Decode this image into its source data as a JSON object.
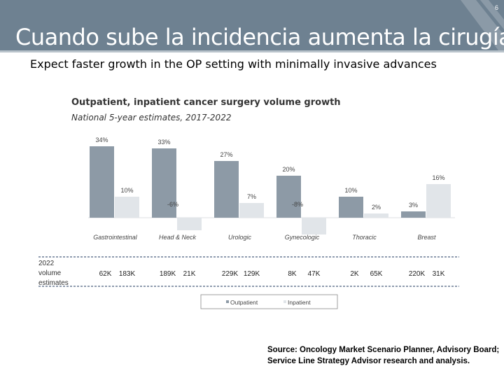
{
  "slide_number": "6",
  "title": "Cuando sube la incidencia aumenta la cirugía",
  "subtitle": "Expect faster growth in the OP setting with minimally invasive advances",
  "chart_title": "Outpatient, inpatient cancer surgery volume growth",
  "chart_subtitle": "National 5-year estimates, 2017-2022",
  "estimates_label": [
    "2022",
    "volume",
    "estimates"
  ],
  "source": "Source: Oncology Market Scenario Planner, Advisory Board; Service Line Strategy Advisor research and analysis.",
  "colors": {
    "outpatient": "#8d9aa6",
    "inpatient": "#e1e5e9",
    "header": "#6e8191",
    "dash": "#1f3a5f"
  },
  "chart_data": {
    "type": "bar",
    "title": "Outpatient, inpatient cancer surgery volume growth",
    "subtitle": "National 5-year estimates, 2017-2022",
    "categories": [
      "Gastrointestinal",
      "Head & Neck",
      "Urologic",
      "Gynecologic",
      "Thoracic",
      "Breast"
    ],
    "series": [
      {
        "name": "Outpatient",
        "values": [
          34,
          33,
          27,
          20,
          10,
          3
        ],
        "labels": [
          "34%",
          "33%",
          "27%",
          "20%",
          "10%",
          "3%"
        ],
        "volumes": [
          "62K",
          "189K",
          "229K",
          "8K",
          "2K",
          "220K"
        ]
      },
      {
        "name": "Inpatient",
        "values": [
          10,
          -6,
          7,
          -8,
          2,
          16
        ],
        "labels": [
          "10%",
          "-6%",
          "7%",
          "-8%",
          "2%",
          "16%"
        ],
        "volumes": [
          "183K",
          "21K",
          "129K",
          "47K",
          "65K",
          "31K"
        ]
      }
    ],
    "ylim": [
      -8,
      34
    ],
    "legend": "bottom-center"
  }
}
